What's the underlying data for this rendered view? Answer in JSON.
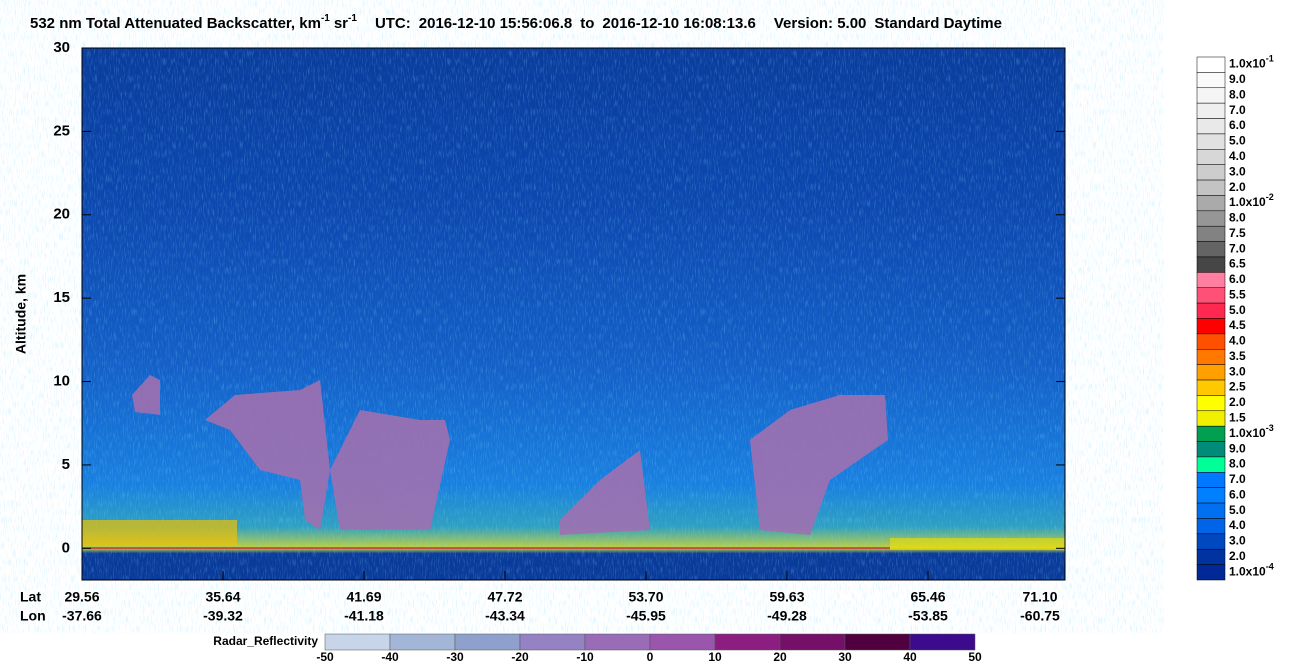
{
  "chart_data": {
    "type": "heatmap",
    "title": {
      "main": "532 nm Total Attenuated Backscatter, km",
      "exp1": "-1",
      "unit2": "sr",
      "exp2": "-1",
      "utc": "UTC:",
      "start": "2016-12-10 15:56:06.8",
      "to": "to",
      "end": "2016-12-10 16:08:13.6",
      "version": "Version: 5.00",
      "mode": "Standard  Daytime"
    },
    "ylabel": "Altitude, km",
    "ylim": [
      -1.9,
      30
    ],
    "yticks": [
      0,
      5,
      10,
      15,
      20,
      25,
      30
    ],
    "x_rows": [
      "Lat",
      "Lon"
    ],
    "xticks": [
      {
        "lat": "29.56",
        "lon": "-37.66"
      },
      {
        "lat": "35.64",
        "lon": "-39.32"
      },
      {
        "lat": "41.69",
        "lon": "-41.18"
      },
      {
        "lat": "47.72",
        "lon": "-43.34"
      },
      {
        "lat": "53.70",
        "lon": "-45.95"
      },
      {
        "lat": "59.63",
        "lon": "-49.28"
      },
      {
        "lat": "65.46",
        "lon": "-53.85"
      },
      {
        "lat": "71.10",
        "lon": "-60.75"
      }
    ],
    "colorbar": [
      {
        "label": "1.0x10",
        "exp": "-1",
        "color": "#ffffff"
      },
      {
        "label": "9.0",
        "color": "#fafafa"
      },
      {
        "label": "8.0",
        "color": "#f5f5f5"
      },
      {
        "label": "7.0",
        "color": "#efefef"
      },
      {
        "label": "6.0",
        "color": "#e9e9e9"
      },
      {
        "label": "5.0",
        "color": "#e1e1e1"
      },
      {
        "label": "4.0",
        "color": "#d7d7d7"
      },
      {
        "label": "3.0",
        "color": "#cdcdcd"
      },
      {
        "label": "2.0",
        "color": "#c3c3c3"
      },
      {
        "label": "1.0x10",
        "exp": "-2",
        "color": "#aaaaaa"
      },
      {
        "label": "8.0",
        "color": "#969696"
      },
      {
        "label": "7.5",
        "color": "#828282"
      },
      {
        "label": "7.0",
        "color": "#646464"
      },
      {
        "label": "6.5",
        "color": "#464646"
      },
      {
        "label": "6.0",
        "color": "#ff7fa0"
      },
      {
        "label": "5.5",
        "color": "#ff5078"
      },
      {
        "label": "5.0",
        "color": "#ff2850"
      },
      {
        "label": "4.5",
        "color": "#ff0000"
      },
      {
        "label": "4.0",
        "color": "#ff5000"
      },
      {
        "label": "3.5",
        "color": "#ff7800"
      },
      {
        "label": "3.0",
        "color": "#ffa000"
      },
      {
        "label": "2.5",
        "color": "#ffc800"
      },
      {
        "label": "2.0",
        "color": "#ffff00"
      },
      {
        "label": "1.5",
        "color": "#f0f000"
      },
      {
        "label": "1.0x10",
        "exp": "-3",
        "color": "#00a050"
      },
      {
        "label": "9.0",
        "color": "#008c78"
      },
      {
        "label": "8.0",
        "color": "#00ff96"
      },
      {
        "label": "7.0",
        "color": "#0078ff"
      },
      {
        "label": "6.0",
        "color": "#0080ff"
      },
      {
        "label": "5.0",
        "color": "#0070f0"
      },
      {
        "label": "4.0",
        "color": "#0064e6"
      },
      {
        "label": "3.0",
        "color": "#0048c0"
      },
      {
        "label": "2.0",
        "color": "#0032a0"
      },
      {
        "label": "1.0x10",
        "exp": "-4",
        "color": "#002896"
      }
    ],
    "radar": {
      "label": "Radar_Reflectivity",
      "ticks": [
        -50,
        -40,
        -30,
        -20,
        -10,
        0,
        10,
        20,
        30,
        40,
        50
      ],
      "colors": [
        "#c8d4e8",
        "#a4b6d8",
        "#8ea0cc",
        "#9482c2",
        "#9a6cb8",
        "#9a56ac",
        "#8c1e82",
        "#741068",
        "#50003e",
        "#3c0a8c"
      ]
    }
  }
}
